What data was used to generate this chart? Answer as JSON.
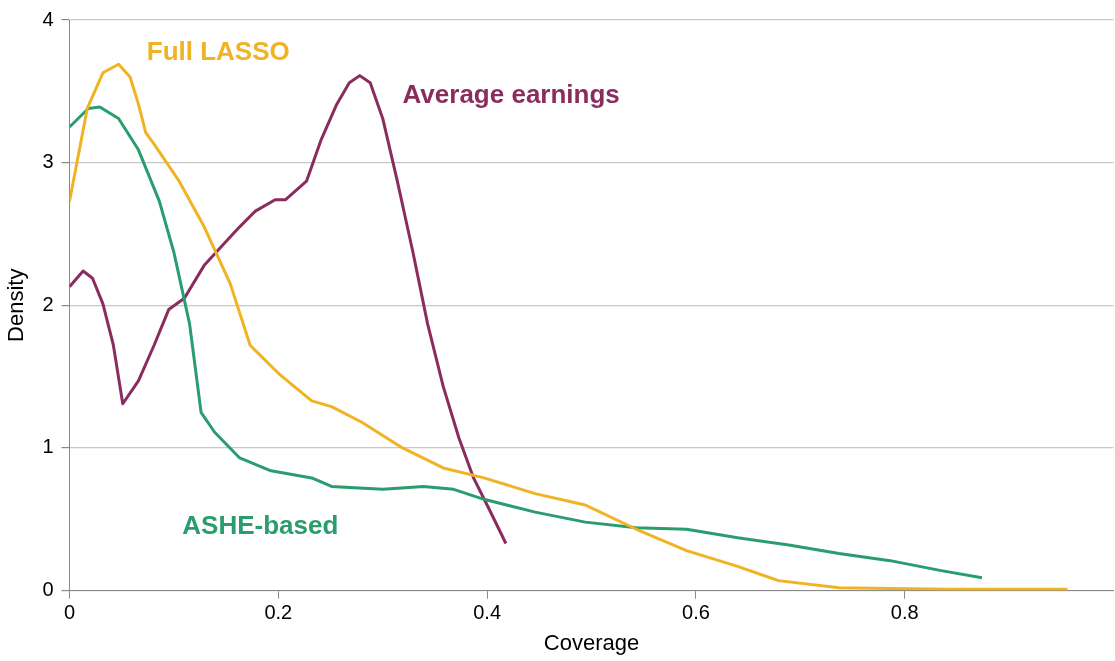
{
  "chart_data": {
    "type": "line",
    "xlabel": "Coverage",
    "ylabel": "Density",
    "xlim": [
      0,
      1
    ],
    "ylim": [
      0,
      4
    ],
    "xticks": [
      0,
      0.2,
      0.4,
      0.6,
      0.8
    ],
    "yticks": [
      0,
      1,
      2,
      3,
      4
    ],
    "grid": "y",
    "legend": false,
    "series": [
      {
        "name": "Full LASSO",
        "color": "#f0b323",
        "x": [
          0,
          0.017,
          0.032,
          0.047,
          0.058,
          0.066,
          0.073,
          0.081,
          0.105,
          0.129,
          0.154,
          0.173,
          0.202,
          0.232,
          0.251,
          0.28,
          0.319,
          0.358,
          0.397,
          0.446,
          0.494,
          0.543,
          0.591,
          0.64,
          0.679,
          0.737,
          0.786,
          0.844,
          0.893,
          0.956
        ],
        "values": [
          2.73,
          3.38,
          3.63,
          3.69,
          3.6,
          3.41,
          3.21,
          3.13,
          2.87,
          2.55,
          2.15,
          1.72,
          1.51,
          1.33,
          1.29,
          1.18,
          1.0,
          0.86,
          0.79,
          0.68,
          0.6,
          0.43,
          0.28,
          0.17,
          0.07,
          0.02,
          0.015,
          0.01,
          0.01,
          0.01
        ]
      },
      {
        "name": "ASHE-based",
        "color": "#2a9d6f",
        "x": [
          0,
          0.018,
          0.029,
          0.047,
          0.066,
          0.086,
          0.1,
          0.115,
          0.126,
          0.139,
          0.163,
          0.193,
          0.232,
          0.251,
          0.3,
          0.339,
          0.368,
          0.397,
          0.446,
          0.494,
          0.543,
          0.591,
          0.64,
          0.689,
          0.737,
          0.786,
          0.835,
          0.874
        ],
        "values": [
          3.25,
          3.38,
          3.39,
          3.31,
          3.09,
          2.73,
          2.37,
          1.87,
          1.25,
          1.11,
          0.93,
          0.84,
          0.79,
          0.73,
          0.71,
          0.73,
          0.71,
          0.64,
          0.55,
          0.48,
          0.44,
          0.43,
          0.37,
          0.32,
          0.26,
          0.21,
          0.14,
          0.09
        ]
      },
      {
        "name": "Average earnings",
        "color": "#8b2c5e",
        "x": [
          0,
          0.013,
          0.022,
          0.032,
          0.042,
          0.051,
          0.066,
          0.081,
          0.095,
          0.11,
          0.129,
          0.149,
          0.163,
          0.178,
          0.197,
          0.207,
          0.227,
          0.241,
          0.256,
          0.268,
          0.278,
          0.288,
          0.3,
          0.314,
          0.329,
          0.343,
          0.358,
          0.373,
          0.387,
          0.402,
          0.418
        ],
        "values": [
          2.13,
          2.24,
          2.19,
          2.01,
          1.72,
          1.31,
          1.47,
          1.72,
          1.97,
          2.05,
          2.28,
          2.44,
          2.55,
          2.66,
          2.74,
          2.74,
          2.87,
          3.16,
          3.41,
          3.56,
          3.61,
          3.56,
          3.31,
          2.87,
          2.37,
          1.87,
          1.43,
          1.07,
          0.79,
          0.57,
          0.33
        ]
      }
    ]
  }
}
